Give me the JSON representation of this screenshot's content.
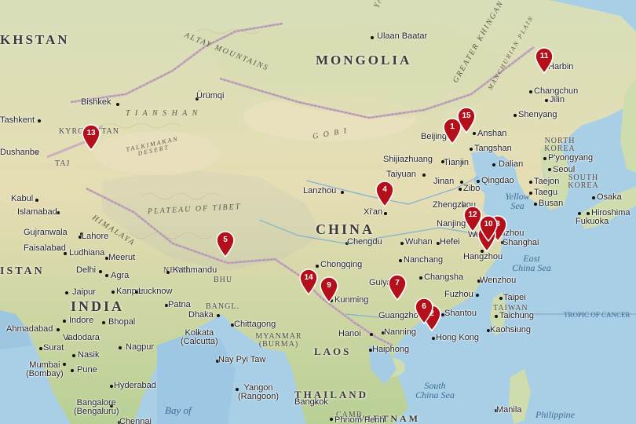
{
  "map": {
    "countries": {
      "kazakhstan": "KHSTAN",
      "mongolia": "MONGOLIA",
      "china": "CHINA",
      "india": "INDIA",
      "north_korea": "NORTH KOREA",
      "south_korea": "SOUTH KOREA",
      "kyrgyzstan": "KYRGYZSTAN",
      "tajikistan": "TAJ",
      "pakistan": "ISTAN",
      "nepal": "NEPAL",
      "bhutan": "BHU",
      "bangladesh": "BANGL.",
      "myanmar": "MYANMAR (BURMA)",
      "laos": "LAOS",
      "thailand": "THAILAND",
      "vietnam": "VIETNAM",
      "cambodia": "CAMB.",
      "taiwan": "TAIWAN",
      "philippines": "Philippine"
    },
    "features": {
      "altay": "ALTAY MOUNTAINS",
      "gobi": "G O B I",
      "talkimakan": "TALKIMAKAN DESERT",
      "tibet": "PLATEAU OF TIBET",
      "himalaya": "HIMALAYA",
      "khingan": "GREATER KHINGAN RANGE",
      "manchurian": "MANCHURIAN PLAIN",
      "tian_shan": "T I A N  S H A N",
      "tropic": "TROPIC OF CANCER",
      "yablonovy": "YABL"
    },
    "seas": {
      "yellow_sea": "Yellow Sea",
      "east_china_sea": "East China Sea",
      "south_china_sea": "South China Sea",
      "bay_of_bengal": "Bay of",
      "philippine_sea": "Philippine"
    },
    "cities": [
      {
        "name": "Ulaan Baatar"
      },
      {
        "name": "Bishkek"
      },
      {
        "name": "Tashkent"
      },
      {
        "name": "Dushanbe"
      },
      {
        "name": "Ürümqi"
      },
      {
        "name": "Harbin"
      },
      {
        "name": "Changchun"
      },
      {
        "name": "Jilin"
      },
      {
        "name": "Shenyang"
      },
      {
        "name": "Anshan"
      },
      {
        "name": "Beijing"
      },
      {
        "name": "Tangshan"
      },
      {
        "name": "Tianjin"
      },
      {
        "name": "Dalian"
      },
      {
        "name": "P'yongyang"
      },
      {
        "name": "Seoul"
      },
      {
        "name": "Taejon"
      },
      {
        "name": "Taegu"
      },
      {
        "name": "Busan"
      },
      {
        "name": "Osaka"
      },
      {
        "name": "Hiroshima"
      },
      {
        "name": "Fukuoka"
      },
      {
        "name": "Shijiazhuang"
      },
      {
        "name": "Taiyuan"
      },
      {
        "name": "Jinan"
      },
      {
        "name": "Zibo"
      },
      {
        "name": "Qingdao"
      },
      {
        "name": "Zhengzhou"
      },
      {
        "name": "Lanzhou"
      },
      {
        "name": "Xi'an"
      },
      {
        "name": "Nanjing"
      },
      {
        "name": "Wuxi"
      },
      {
        "name": "Suzhou"
      },
      {
        "name": "Shanghai"
      },
      {
        "name": "Hangzhou"
      },
      {
        "name": "Chengdu"
      },
      {
        "name": "Wuhan"
      },
      {
        "name": "Hefei"
      },
      {
        "name": "Chongqing"
      },
      {
        "name": "Nanchang"
      },
      {
        "name": "Changsha"
      },
      {
        "name": "Wenzhou"
      },
      {
        "name": "Guiyang"
      },
      {
        "name": "Kunming"
      },
      {
        "name": "Fuzhou"
      },
      {
        "name": "Taipei"
      },
      {
        "name": "Taichung"
      },
      {
        "name": "Kaohsiung"
      },
      {
        "name": "Guangzhou"
      },
      {
        "name": "Shantou"
      },
      {
        "name": "Nanning"
      },
      {
        "name": "Hong Kong"
      },
      {
        "name": "Hanoi"
      },
      {
        "name": "Haiphong"
      },
      {
        "name": "Kabul"
      },
      {
        "name": "Islamabad"
      },
      {
        "name": "Gujranwala"
      },
      {
        "name": "Lahore"
      },
      {
        "name": "Faisalabad"
      },
      {
        "name": "Ludhiana"
      },
      {
        "name": "Meerut"
      },
      {
        "name": "Delhi"
      },
      {
        "name": "Agra"
      },
      {
        "name": "Jaipur"
      },
      {
        "name": "Kanpur"
      },
      {
        "name": "Lucknow"
      },
      {
        "name": "Kathmandu"
      },
      {
        "name": "Patna"
      },
      {
        "name": "Dhaka"
      },
      {
        "name": "Chittagong"
      },
      {
        "name": "Kolkata (Calcutta)"
      },
      {
        "name": "Indore"
      },
      {
        "name": "Bhopal"
      },
      {
        "name": "Ahmadabad"
      },
      {
        "name": "Vadodara"
      },
      {
        "name": "Surat"
      },
      {
        "name": "Nasik"
      },
      {
        "name": "Nagpur"
      },
      {
        "name": "Mumbai (Bombay)"
      },
      {
        "name": "Pune"
      },
      {
        "name": "Hyderabad"
      },
      {
        "name": "Bangalore (Bengaluru)"
      },
      {
        "name": "Chennai"
      },
      {
        "name": "Nay Pyi Taw"
      },
      {
        "name": "Yangon (Rangoon)"
      },
      {
        "name": "Bangkok"
      },
      {
        "name": "Phnom Penh"
      },
      {
        "name": "Manila"
      },
      {
        "name": "Hyderabad"
      }
    ],
    "markers": [
      "1",
      "2",
      "3",
      "4",
      "5",
      "6",
      "7",
      "8",
      "9",
      "10",
      "11",
      "12",
      "13",
      "14",
      "15"
    ],
    "colors": {
      "marker": "#b3101b",
      "water": "#a9cfe6",
      "land_green": "#c9d9a6",
      "land_tan": "#e8dcb5"
    }
  }
}
